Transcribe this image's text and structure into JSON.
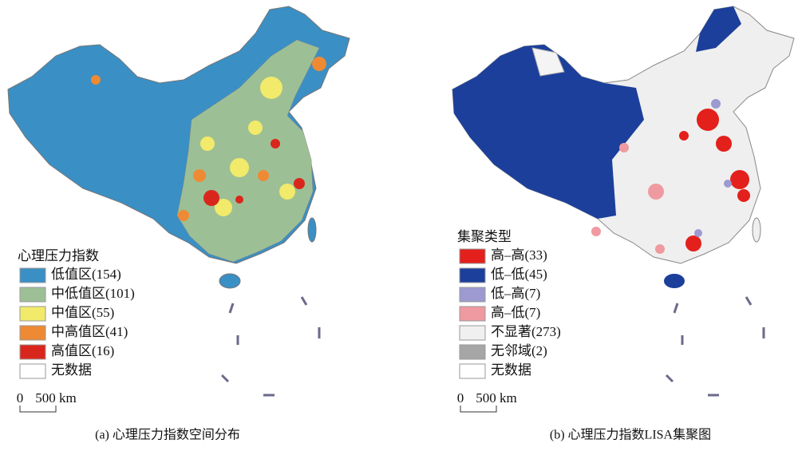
{
  "panels": [
    {
      "legend_title": "心理压力指数",
      "legend": [
        {
          "label": "低值区(154)",
          "color": "#3a8fc4"
        },
        {
          "label": "中低值区(101)",
          "color": "#9dbf95"
        },
        {
          "label": "中值区(55)",
          "color": "#f1ea6a"
        },
        {
          "label": "中高值区(41)",
          "color": "#ee8a34"
        },
        {
          "label": "高值区(16)",
          "color": "#d9261c"
        },
        {
          "label": "无数据",
          "color": "#ffffff"
        }
      ],
      "scale": {
        "start": "0",
        "end": "500 km"
      },
      "caption": "(a) 心理压力指数空间分布"
    },
    {
      "legend_title": "集聚类型",
      "legend": [
        {
          "label": "高–高(33)",
          "color": "#e3201b"
        },
        {
          "label": "低–低(45)",
          "color": "#1c3f9b"
        },
        {
          "label": "低–高(7)",
          "color": "#9c9ad0"
        },
        {
          "label": "高–低(7)",
          "color": "#ef9aa0"
        },
        {
          "label": "不显著(273)",
          "color": "#f0f0f0"
        },
        {
          "label": "无邻域(2)",
          "color": "#a6a6a6"
        },
        {
          "label": "无数据",
          "color": "#ffffff"
        }
      ],
      "scale": {
        "start": "0",
        "end": "500 km"
      },
      "caption": "(b) 心理压力指数LISA集聚图"
    }
  ]
}
